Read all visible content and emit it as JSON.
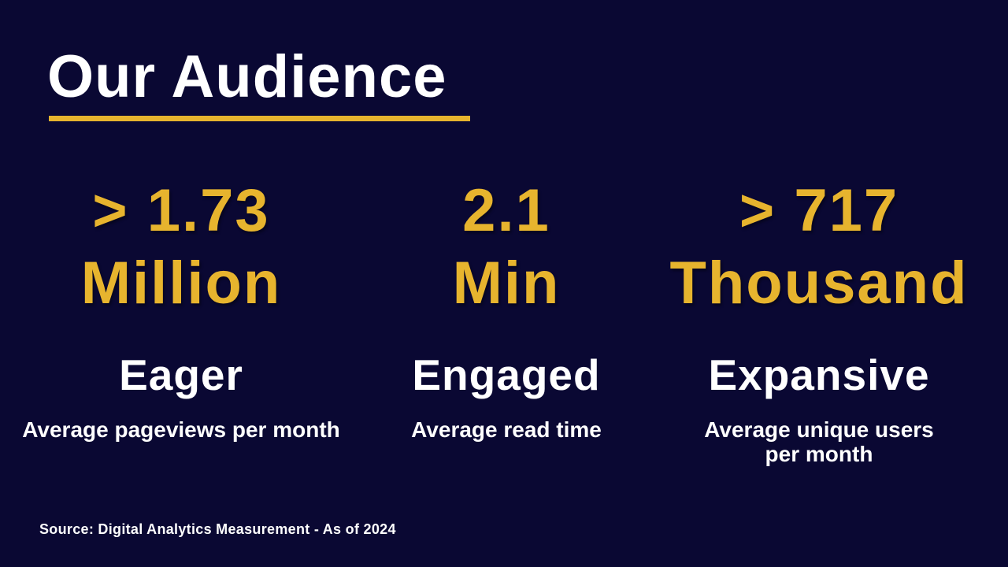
{
  "slide": {
    "title": "Our Audience",
    "source": "Source: Digital Analytics Measurement - As of 2024"
  },
  "colors": {
    "background": "#0A0833",
    "gold": "#E7B42E",
    "white": "#FFFFFF"
  },
  "stats": [
    {
      "value_line1": "> 1.73",
      "value_line2": "Million",
      "label": "Eager",
      "desc_line1": "Average pageviews per month"
    },
    {
      "value_line1": "2.1",
      "value_line2": "Min",
      "label": "Engaged",
      "desc_line1": "Average read time"
    },
    {
      "value_line1": "> 717",
      "value_line2": "Thousand",
      "label": "Expansive",
      "desc_line1": "Average unique users",
      "desc_line2": "per month"
    }
  ]
}
